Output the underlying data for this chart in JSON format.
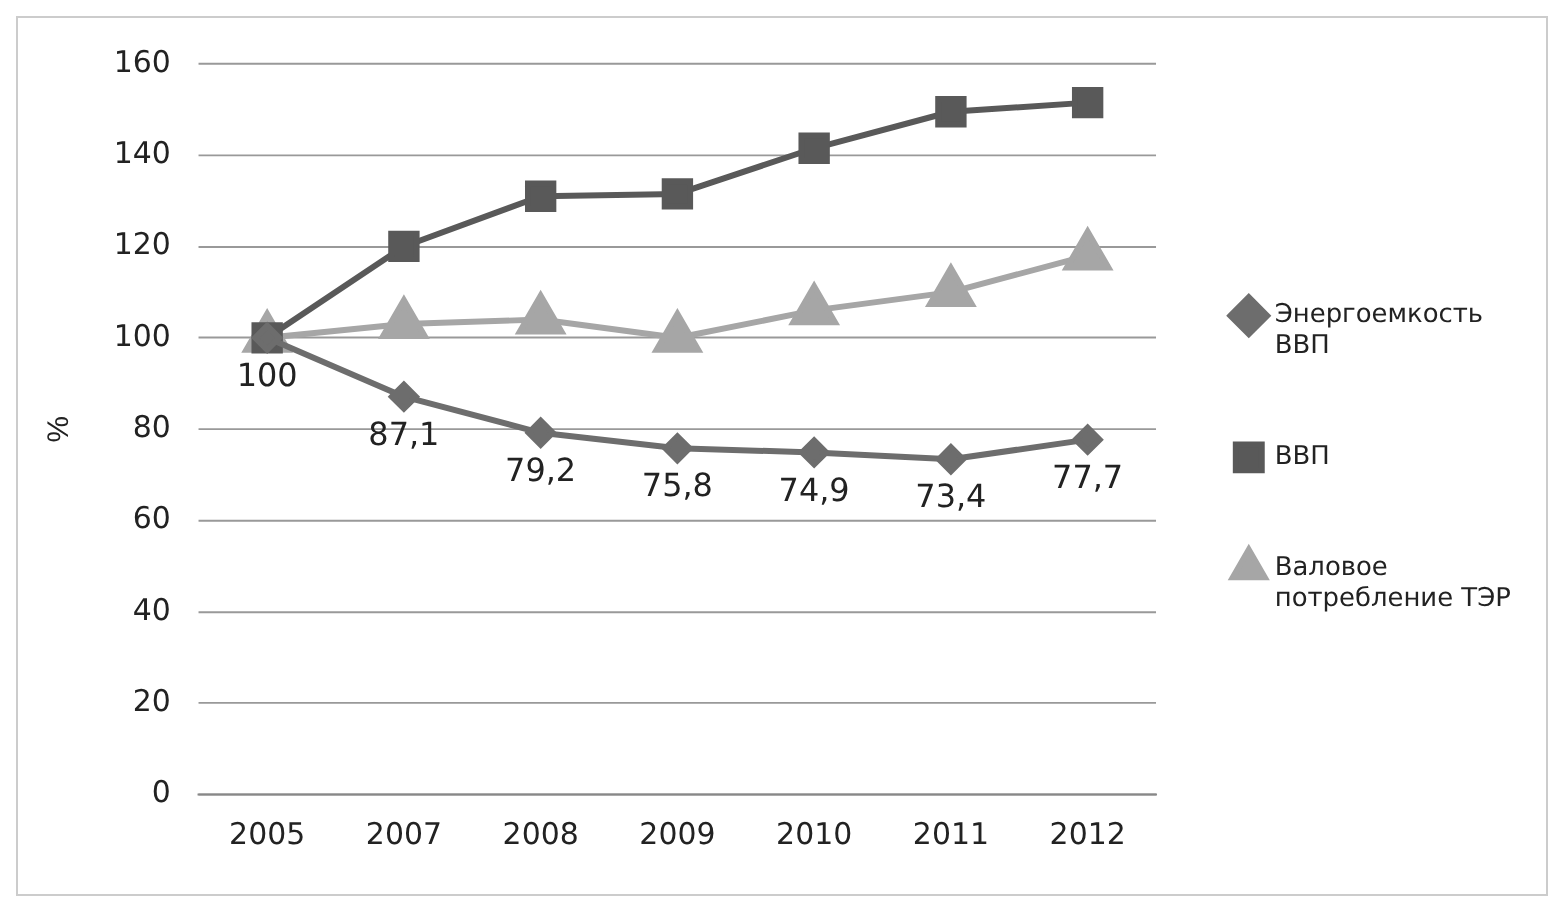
{
  "chart_data": {
    "type": "line",
    "ylabel": "%",
    "categories": [
      "2005",
      "2007",
      "2008",
      "2009",
      "2010",
      "2011",
      "2012"
    ],
    "series": [
      {
        "name": "Энергоемкость ВВП",
        "color": "#6d6d6d",
        "marker": "diamond",
        "values": [
          100,
          87.1,
          79.2,
          75.8,
          74.9,
          73.4,
          77.7
        ],
        "value_labels": [
          "100",
          "87,1",
          "79,2",
          "75,8",
          "74,9",
          "73,4",
          "77,7"
        ]
      },
      {
        "name": "ВВП",
        "color": "#595959",
        "marker": "square",
        "values": [
          100,
          120,
          131,
          131.5,
          141.5,
          149.5,
          151.5
        ]
      },
      {
        "name": "Валовое потребление ТЭР",
        "color": "#a6a6a6",
        "marker": "triangle",
        "values": [
          100,
          103,
          104,
          100,
          106,
          110,
          118
        ]
      }
    ],
    "ylim": [
      0,
      160
    ],
    "yticks": [
      0,
      20,
      40,
      60,
      80,
      100,
      120,
      140,
      160
    ],
    "grid": "y",
    "legend": "right"
  }
}
